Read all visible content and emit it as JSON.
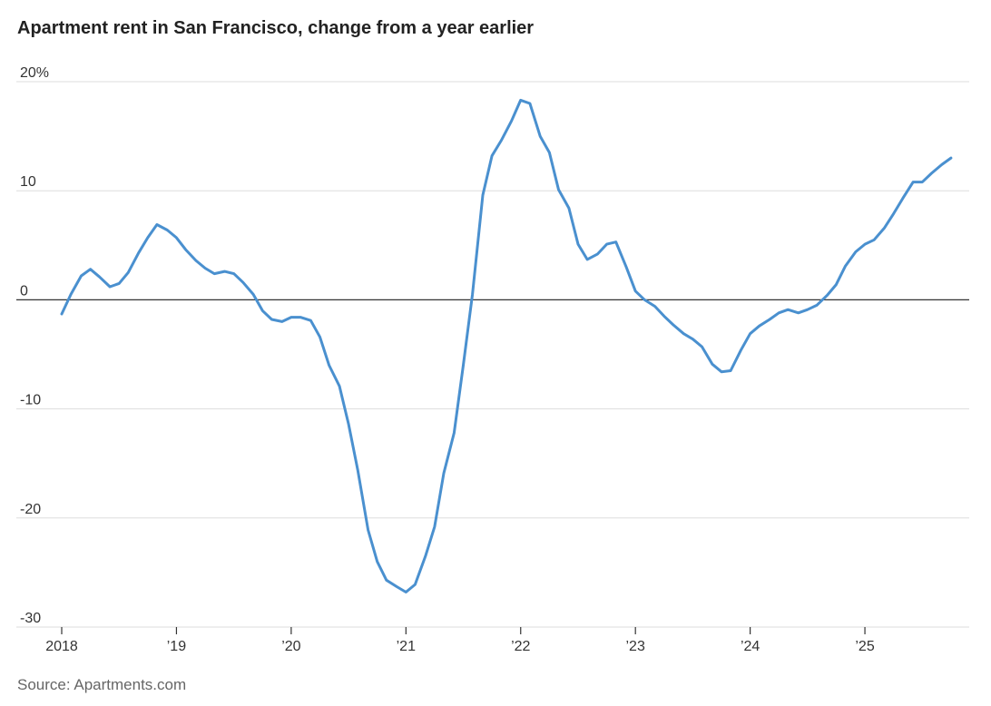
{
  "title": "Apartment rent in San Francisco, change from a year earlier",
  "source": "Source: Apartments.com",
  "chart_data": {
    "type": "line",
    "title": "Apartment rent in San Francisco, change from a year earlier",
    "xlabel": "",
    "ylabel": "",
    "ylim": [
      -30,
      20
    ],
    "xlim": [
      2018.0,
      2025.83
    ],
    "grid": true,
    "y_ticks": [
      20,
      10,
      0,
      -10,
      -20,
      -30
    ],
    "y_tick_labels": [
      "20%",
      "10",
      "0",
      "-10",
      "-20",
      "-30"
    ],
    "x_ticks": [
      2018,
      2019,
      2020,
      2021,
      2022,
      2023,
      2024,
      2025
    ],
    "x_tick_labels": [
      "2018",
      "’19",
      "’20",
      "’21",
      "’22",
      "’23",
      "’24",
      "’25"
    ],
    "line_color": "#4a90cf",
    "series": [
      {
        "x": [
          2018.0,
          2018.08,
          2018.17,
          2018.25,
          2018.33,
          2018.42,
          2018.5,
          2018.58,
          2018.67,
          2018.75,
          2018.83,
          2018.92,
          2019.0,
          2019.08,
          2019.17,
          2019.25,
          2019.33,
          2019.42,
          2019.5,
          2019.58,
          2019.67,
          2019.75,
          2019.83,
          2019.92,
          2020.0,
          2020.08,
          2020.17,
          2020.25,
          2020.33,
          2020.42,
          2020.5,
          2020.58,
          2020.67,
          2020.75,
          2020.83,
          2020.92,
          2021.0,
          2021.08,
          2021.17,
          2021.25,
          2021.33,
          2021.42,
          2021.5,
          2021.58,
          2021.67,
          2021.75,
          2021.83,
          2021.92,
          2022.0,
          2022.08,
          2022.17,
          2022.25,
          2022.33,
          2022.42,
          2022.5,
          2022.58,
          2022.67,
          2022.75,
          2022.83,
          2022.92,
          2023.0,
          2023.08,
          2023.17,
          2023.25,
          2023.33,
          2023.42,
          2023.5,
          2023.58,
          2023.67,
          2023.75,
          2023.83,
          2023.92,
          2024.0,
          2024.08,
          2024.17,
          2024.25,
          2024.33,
          2024.42,
          2024.5,
          2024.58,
          2024.67,
          2024.75,
          2024.83,
          2024.92,
          2025.0,
          2025.08,
          2025.17,
          2025.25,
          2025.33,
          2025.42,
          2025.5,
          2025.58,
          2025.67,
          2025.75
        ],
        "values": [
          -1.3,
          0.5,
          2.2,
          2.8,
          2.1,
          1.2,
          1.5,
          2.5,
          4.3,
          5.7,
          6.9,
          6.4,
          5.7,
          4.6,
          3.6,
          2.9,
          2.4,
          2.6,
          2.4,
          1.6,
          0.5,
          -1.0,
          -1.8,
          -2.0,
          -1.6,
          -1.6,
          -1.9,
          -3.4,
          -6.0,
          -7.9,
          -11.4,
          -15.6,
          -21.1,
          -24.0,
          -25.7,
          -26.3,
          -26.8,
          -26.1,
          -23.5,
          -20.8,
          -15.9,
          -12.2,
          -6.0,
          0.5,
          9.6,
          13.2,
          14.6,
          16.4,
          18.3,
          18.0,
          15.0,
          13.5,
          10.1,
          8.4,
          5.1,
          3.7,
          4.2,
          5.1,
          5.3,
          3.0,
          0.8,
          0.0,
          -0.6,
          -1.5,
          -2.3,
          -3.1,
          -3.6,
          -4.3,
          -5.9,
          -6.6,
          -6.5,
          -4.6,
          -3.1,
          -2.4,
          -1.8,
          -1.2,
          -0.9,
          -1.2,
          -0.9,
          -0.5,
          0.4,
          1.4,
          3.1,
          4.4,
          5.1,
          5.5,
          6.6,
          7.9,
          9.3,
          10.8,
          10.8,
          11.6,
          12.4,
          13.0
        ]
      }
    ]
  }
}
